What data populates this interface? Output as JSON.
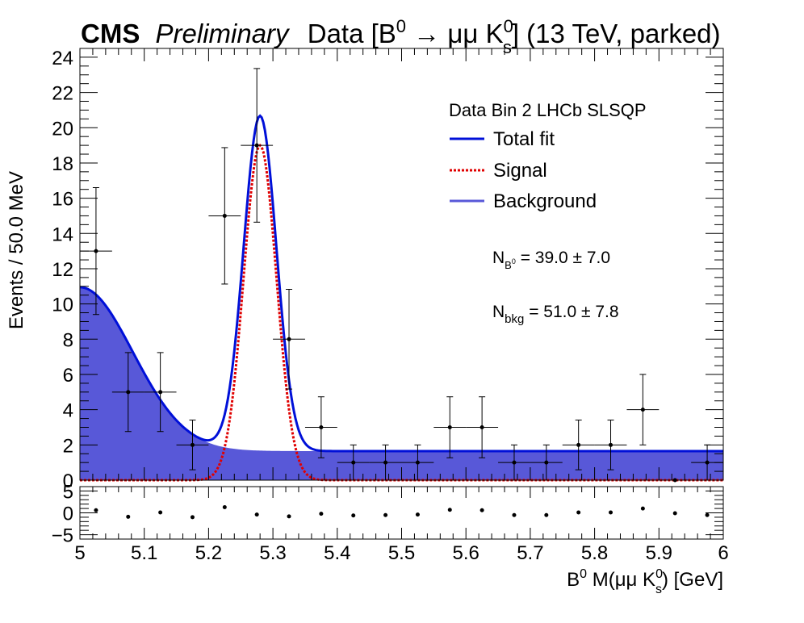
{
  "chart_data": {
    "type": "scatter",
    "title": {
      "cms": "CMS",
      "preliminary": "Preliminary",
      "text_parts": [
        "Data [B",
        "0",
        " → μμ K",
        "0",
        "s",
        "] (13 TeV, parked)"
      ]
    },
    "xlabel_parts": [
      "B",
      "0",
      " M(μμ K",
      "0",
      "s",
      ") [GeV]"
    ],
    "ylabel": "Events / 50.0 MeV",
    "xlim": [
      5.0,
      6.0
    ],
    "ylim": [
      0,
      24.5
    ],
    "x_ticks": [
      "5",
      "5.1",
      "5.2",
      "5.3",
      "5.4",
      "5.5",
      "5.6",
      "5.7",
      "5.8",
      "5.9",
      "6"
    ],
    "y_ticks": [
      "0",
      "2",
      "4",
      "6",
      "8",
      "10",
      "12",
      "14",
      "16",
      "18",
      "20",
      "22",
      "24"
    ],
    "pull_ylim": [
      -6,
      6
    ],
    "pull_ticks": [
      "−5",
      "0",
      "5"
    ],
    "bin_half_width": 0.025,
    "data_points": [
      {
        "x": 5.025,
        "y": 13,
        "err": 3.6
      },
      {
        "x": 5.075,
        "y": 5,
        "err": 2.24
      },
      {
        "x": 5.125,
        "y": 5,
        "err": 2.24
      },
      {
        "x": 5.175,
        "y": 2,
        "err": 1.41
      },
      {
        "x": 5.225,
        "y": 15,
        "err": 3.87
      },
      {
        "x": 5.275,
        "y": 19,
        "err": 4.36
      },
      {
        "x": 5.325,
        "y": 8,
        "err": 2.83
      },
      {
        "x": 5.375,
        "y": 3,
        "err": 1.73
      },
      {
        "x": 5.425,
        "y": 1,
        "err": 1.0
      },
      {
        "x": 5.475,
        "y": 1,
        "err": 1.0
      },
      {
        "x": 5.525,
        "y": 1,
        "err": 1.0
      },
      {
        "x": 5.575,
        "y": 3,
        "err": 1.73
      },
      {
        "x": 5.625,
        "y": 3,
        "err": 1.73
      },
      {
        "x": 5.675,
        "y": 1,
        "err": 1.0
      },
      {
        "x": 5.725,
        "y": 1,
        "err": 1.0
      },
      {
        "x": 5.775,
        "y": 2,
        "err": 1.41
      },
      {
        "x": 5.825,
        "y": 2,
        "err": 1.41
      },
      {
        "x": 5.875,
        "y": 4,
        "err": 2.0
      },
      {
        "x": 5.925,
        "y": 0,
        "err": 0
      },
      {
        "x": 5.975,
        "y": 1,
        "err": 1.0
      }
    ],
    "pulls": [
      {
        "x": 5.025,
        "y": 0.6
      },
      {
        "x": 5.075,
        "y": -0.9
      },
      {
        "x": 5.125,
        "y": 0.1
      },
      {
        "x": 5.175,
        "y": -1.0
      },
      {
        "x": 5.225,
        "y": 1.3
      },
      {
        "x": 5.275,
        "y": -0.4
      },
      {
        "x": 5.325,
        "y": -0.8
      },
      {
        "x": 5.375,
        "y": -0.2
      },
      {
        "x": 5.425,
        "y": -0.6
      },
      {
        "x": 5.475,
        "y": -0.5
      },
      {
        "x": 5.525,
        "y": -0.4
      },
      {
        "x": 5.575,
        "y": 0.7
      },
      {
        "x": 5.625,
        "y": 0.6
      },
      {
        "x": 5.675,
        "y": -0.5
      },
      {
        "x": 5.725,
        "y": -0.5
      },
      {
        "x": 5.775,
        "y": 0.1
      },
      {
        "x": 5.825,
        "y": 0.1
      },
      {
        "x": 5.875,
        "y": 1.0
      },
      {
        "x": 5.925,
        "y": -0.1
      },
      {
        "x": 5.975,
        "y": -0.5
      }
    ],
    "signal": {
      "mean": 5.28,
      "sigma": 0.0255,
      "peak": 19.0
    },
    "background": {
      "gauss_amp": 9.3,
      "gauss_mean": 5.0,
      "gauss_sigma": 0.082,
      "constant": 1.65
    },
    "legend": {
      "header": "Data Bin 2 LHCb SLSQP",
      "entries": [
        "Total fit",
        "Signal",
        "Background"
      ],
      "position": "top-right"
    },
    "annotations": {
      "nsig": {
        "n": "N",
        "sub": "B",
        "subsup": "0",
        "val": " = 39.0 ± 7.0"
      },
      "nbkg": {
        "n": "N",
        "sub": "bkg",
        "val": " = 51.0 ± 7.8"
      }
    },
    "colors": {
      "total": "#0010d8",
      "signal": "#e00000",
      "background": "#5858d8",
      "data": "#000000"
    }
  }
}
